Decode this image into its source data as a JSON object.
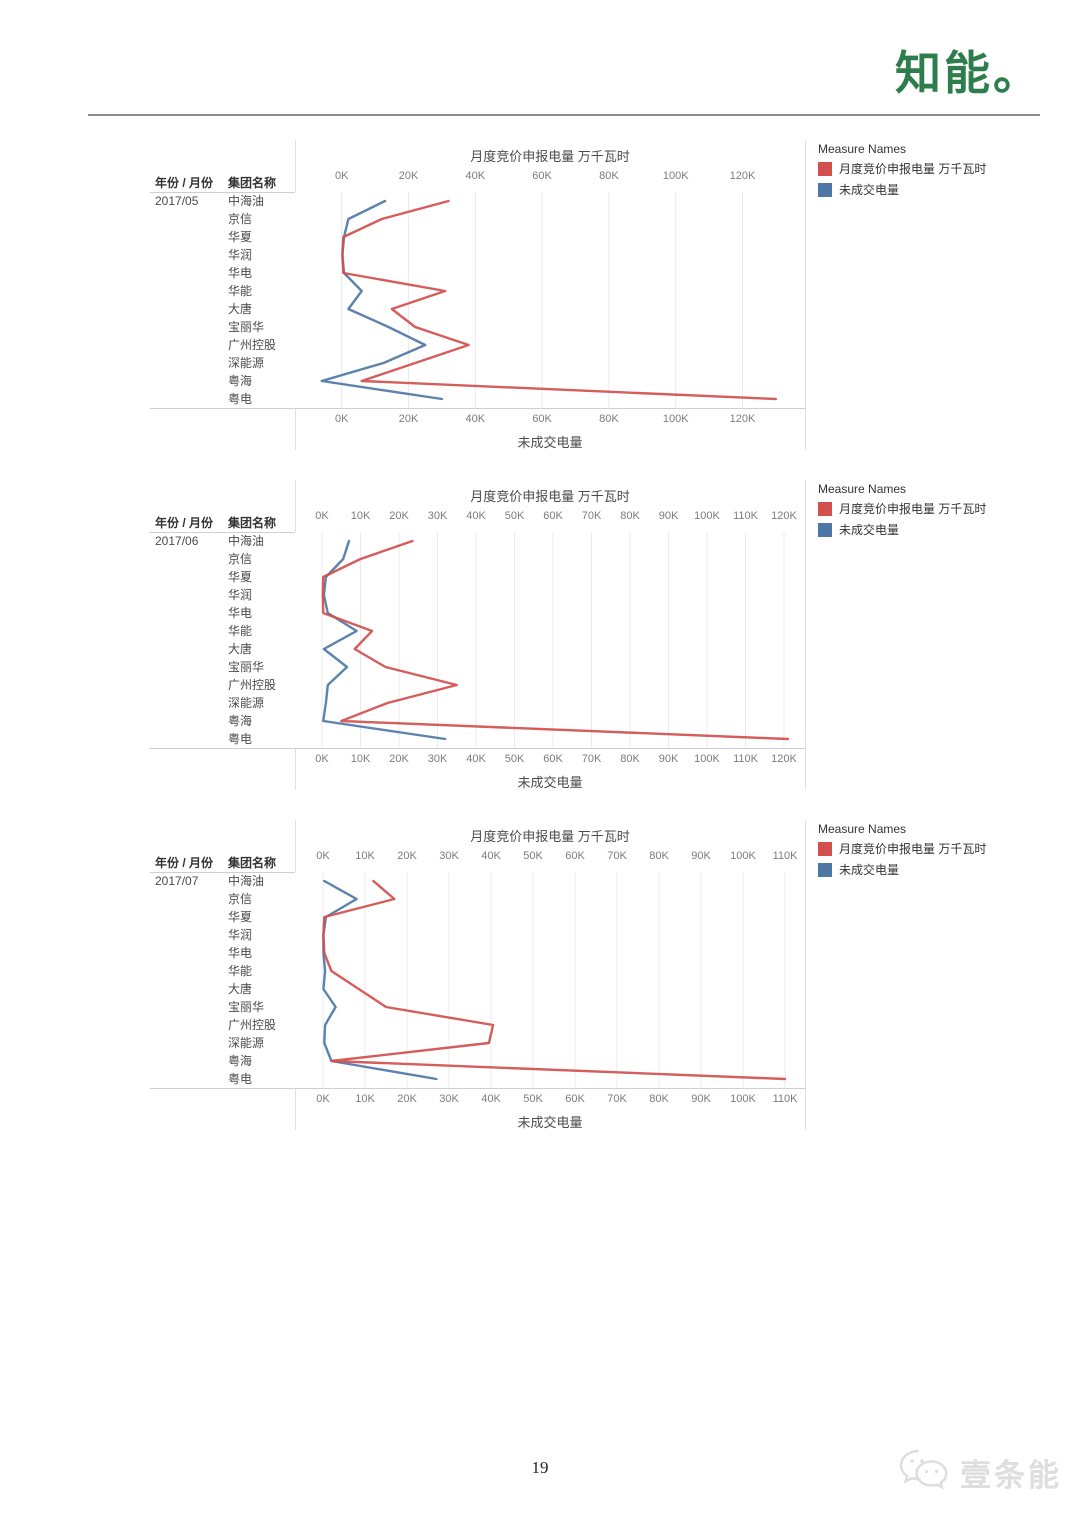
{
  "page": {
    "brand_logo": "知能。",
    "page_number": "19",
    "watermark_text": "壹条能"
  },
  "colors": {
    "series_red": "#d14f4d",
    "series_blue": "#4d78a6",
    "brand_green": "#2e7d4c",
    "watermark_gray": "#dedede"
  },
  "chart_data": [
    {
      "type": "line",
      "orientation": "horizontal-category",
      "date": "2017/05",
      "title": "月度竞价申报电量 万千瓦时",
      "xlabel_bottom": "未成交电量",
      "col_headers": [
        "年份 / 月份",
        "集团名称"
      ],
      "legend_title": "Measure Names",
      "legend_position": "right",
      "grid": "vertical",
      "categories": [
        "中海油",
        "京信",
        "华夏",
        "华润",
        "华电",
        "华能",
        "大唐",
        "宝丽华",
        "广州控股",
        "深能源",
        "粤海",
        "粤电"
      ],
      "x_ticks": [
        "0K",
        "20K",
        "40K",
        "60K",
        "80K",
        "100K",
        "120K"
      ],
      "x_unit": "K",
      "xlim": [
        -7,
        139
      ],
      "series": [
        {
          "name": "月度竞价申报电量 万千瓦时",
          "color": "#d14f4d",
          "values": [
            32,
            12,
            0.5,
            0.2,
            0.5,
            31,
            15,
            22,
            38,
            22,
            6,
            130
          ]
        },
        {
          "name": "未成交电量",
          "color": "#4d78a6",
          "values": [
            13,
            2,
            0.7,
            0.2,
            0.7,
            6,
            2,
            14,
            25,
            12.5,
            -6,
            30
          ]
        }
      ]
    },
    {
      "type": "line",
      "orientation": "horizontal-category",
      "date": "2017/06",
      "title": "月度竞价申报电量 万千瓦时",
      "xlabel_bottom": "未成交电量",
      "col_headers": [
        "年份 / 月份",
        "集团名称"
      ],
      "legend_title": "Measure Names",
      "legend_position": "right",
      "grid": "vertical",
      "categories": [
        "中海油",
        "京信",
        "华夏",
        "华润",
        "华电",
        "华能",
        "大唐",
        "宝丽华",
        "广州控股",
        "深能源",
        "粤海",
        "粤电"
      ],
      "x_ticks": [
        "0K",
        "10K",
        "20K",
        "30K",
        "40K",
        "50K",
        "60K",
        "70K",
        "80K",
        "90K",
        "100K",
        "110K",
        "120K"
      ],
      "x_unit": "K",
      "xlim": [
        -7,
        126
      ],
      "series": [
        {
          "name": "月度竞价申报电量 万千瓦时",
          "color": "#d14f4d",
          "values": [
            23.5,
            10,
            0.3,
            0.2,
            0.3,
            13,
            8.5,
            16.5,
            35,
            17,
            5,
            121
          ]
        },
        {
          "name": "未成交电量",
          "color": "#4d78a6",
          "values": [
            7,
            5.5,
            1,
            0.5,
            1.5,
            9,
            0.5,
            6.5,
            1.5,
            1,
            0.3,
            32
          ]
        }
      ]
    },
    {
      "type": "line",
      "orientation": "horizontal-category",
      "date": "2017/07",
      "title": "月度竞价申报电量 万千瓦时",
      "xlabel_bottom": "未成交电量",
      "col_headers": [
        "年份 / 月份",
        "集团名称"
      ],
      "legend_title": "Measure Names",
      "legend_position": "right",
      "grid": "vertical",
      "categories": [
        "中海油",
        "京信",
        "华夏",
        "华润",
        "华电",
        "华能",
        "大唐",
        "宝丽华",
        "广州控股",
        "深能源",
        "粤海",
        "粤电"
      ],
      "x_ticks": [
        "0K",
        "10K",
        "20K",
        "30K",
        "40K",
        "50K",
        "60K",
        "70K",
        "80K",
        "90K",
        "100K",
        "110K"
      ],
      "x_unit": "K",
      "xlim": [
        -7,
        115
      ],
      "series": [
        {
          "name": "月度竞价申报电量 万千瓦时",
          "color": "#d14f4d",
          "values": [
            12,
            17,
            0.3,
            0.1,
            0.3,
            2,
            8.5,
            15,
            40.5,
            39.5,
            2,
            110
          ]
        },
        {
          "name": "未成交电量",
          "color": "#4d78a6",
          "values": [
            0.3,
            8,
            0.7,
            0.1,
            0.1,
            0.5,
            0.1,
            3,
            0.5,
            0.3,
            2,
            27
          ]
        }
      ]
    }
  ]
}
